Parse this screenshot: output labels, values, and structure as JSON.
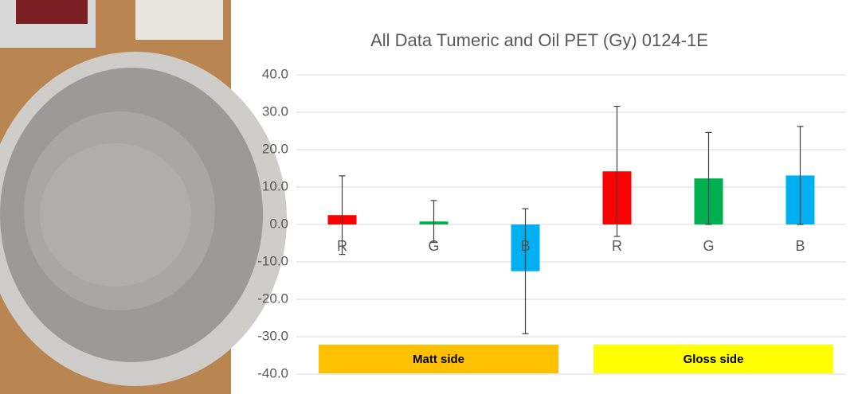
{
  "chart_data": {
    "type": "bar",
    "title": "All Data Tumeric and Oil PET (Gy) 0124-1E",
    "categories": [
      "R",
      "G",
      "B",
      "R",
      "G",
      "B"
    ],
    "series": [
      {
        "values": [
          2.5,
          0.8,
          -12.5,
          14.2,
          12.3,
          13.1
        ],
        "errors": [
          10.5,
          5.6,
          16.7,
          17.4,
          12.3,
          13.1
        ],
        "colors": [
          "#ff0000",
          "#00b050",
          "#00b0f0",
          "#ff0000",
          "#00b050",
          "#00b0f0"
        ]
      }
    ],
    "ylim": [
      -40,
      40
    ],
    "yticks": [
      {
        "value": -40,
        "label": "-40.0"
      },
      {
        "value": -30,
        "label": "-30.0"
      },
      {
        "value": -20,
        "label": "-20.0"
      },
      {
        "value": -10,
        "label": "-10.0"
      },
      {
        "value": 0,
        "label": "0.0"
      },
      {
        "value": 10,
        "label": "10.0"
      },
      {
        "value": 20,
        "label": "20.0"
      },
      {
        "value": 30,
        "label": "30.0"
      },
      {
        "value": 40,
        "label": "40.0"
      }
    ],
    "grid": true,
    "annotations": [
      {
        "text": "Matt side",
        "color": "#ffc000"
      },
      {
        "text": "Gloss side",
        "color": "#ffff00"
      }
    ]
  }
}
